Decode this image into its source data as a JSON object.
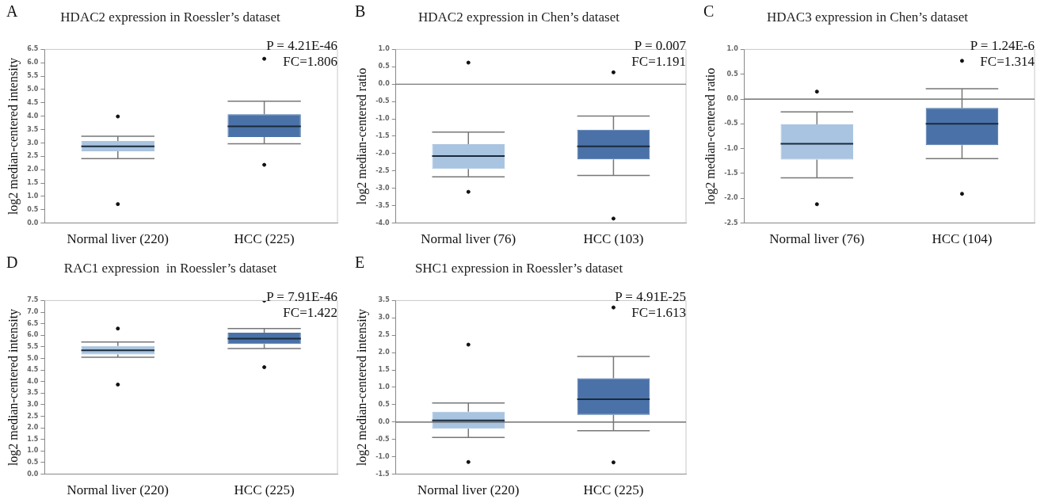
{
  "chart_data": [
    {
      "type": "box",
      "title": "HDAC2 expression in Roessler’s dataset",
      "ylabel": "log2 median-centered intensity",
      "categories": [
        "Normal liver (220)",
        "HCC (225)"
      ],
      "colors": [
        "#a9c4e0",
        "#4a72a8"
      ],
      "boxes": [
        {
          "low": 2.41,
          "q1": 2.69,
          "median": 2.87,
          "q3": 3.07,
          "high": 3.25,
          "outliers": [
            3.99,
            0.71
          ]
        },
        {
          "low": 2.97,
          "q1": 3.22,
          "median": 3.62,
          "q3": 4.07,
          "high": 4.56,
          "outliers": [
            6.15,
            2.18
          ]
        }
      ],
      "ylim": [
        0,
        6.5
      ],
      "yticks": [
        {
          "value": 0,
          "label": "0.0"
        },
        {
          "value": 0.5,
          "label": "0.5"
        },
        {
          "value": 1,
          "label": "1.0"
        },
        {
          "value": 1.5,
          "label": "1.5"
        },
        {
          "value": 2,
          "label": "2.0"
        },
        {
          "value": 2.5,
          "label": "2.5"
        },
        {
          "value": 3,
          "label": "3.0"
        },
        {
          "value": 3.5,
          "label": "3.5"
        },
        {
          "value": 4,
          "label": "4.0"
        },
        {
          "value": 4.5,
          "label": "4.5"
        },
        {
          "value": 5,
          "label": "5.0"
        },
        {
          "value": 5.5,
          "label": "5.5"
        },
        {
          "value": 6,
          "label": "6.0"
        },
        {
          "value": 6.5,
          "label": "6.5"
        }
      ],
      "annotations": [
        "A",
        "P = 4.21E-46",
        "FC=1.806"
      ],
      "legend": false,
      "grid": false
    },
    {
      "type": "box",
      "title": "HDAC2 expression in Chen’s dataset",
      "ylabel": "log2 median-centered ratio",
      "categories": [
        "Normal liver (76)",
        "HCC (103)"
      ],
      "colors": [
        "#a9c4e0",
        "#4a72a8"
      ],
      "boxes": [
        {
          "low": -2.67,
          "q1": -2.44,
          "median": -2.07,
          "q3": -1.73,
          "high": -1.38,
          "outliers": [
            0.62,
            -3.1
          ]
        },
        {
          "low": -2.63,
          "q1": -2.17,
          "median": -1.79,
          "q3": -1.31,
          "high": -0.92,
          "outliers": [
            0.34,
            -3.87
          ]
        }
      ],
      "ylim": [
        -4,
        1
      ],
      "yticks": [
        {
          "value": -4,
          "label": "-4.0"
        },
        {
          "value": -3.5,
          "label": "-3.5"
        },
        {
          "value": -3,
          "label": "-3.0"
        },
        {
          "value": -2.5,
          "label": "-2.5"
        },
        {
          "value": -2,
          "label": "-2.0"
        },
        {
          "value": -1.5,
          "label": "-1.5"
        },
        {
          "value": -1,
          "label": "-1.0"
        },
        {
          "value": -0.5,
          "label": "-0.5"
        },
        {
          "value": 0,
          "label": "0.0"
        },
        {
          "value": 0.5,
          "label": "0.5"
        },
        {
          "value": 1,
          "label": "1.0"
        }
      ],
      "ref_lines": [
        {
          "axis": "y",
          "value": 0,
          "color": "#555555"
        }
      ],
      "annotations": [
        "B",
        "P = 0.007",
        "FC=1.191"
      ],
      "legend": false,
      "grid": false
    },
    {
      "type": "box",
      "title": "HDAC3 expression in Chen’s dataset",
      "ylabel": "log2 median-centered ratio",
      "categories": [
        "Normal liver (76)",
        "HCC (104)"
      ],
      "colors": [
        "#a9c4e0",
        "#4a72a8"
      ],
      "boxes": [
        {
          "low": -1.59,
          "q1": -1.22,
          "median": -0.9,
          "q3": -0.51,
          "high": -0.26,
          "outliers": [
            0.15,
            -2.12
          ]
        },
        {
          "low": -1.2,
          "q1": -0.93,
          "median": -0.5,
          "q3": -0.18,
          "high": 0.21,
          "outliers": [
            0.77,
            -1.91
          ]
        }
      ],
      "ylim": [
        -2.5,
        1
      ],
      "yticks": [
        {
          "value": -2.5,
          "label": "-2.5"
        },
        {
          "value": -2,
          "label": "-2.0"
        },
        {
          "value": -1.5,
          "label": "-1.5"
        },
        {
          "value": -1,
          "label": "-1.0"
        },
        {
          "value": -0.5,
          "label": "-0.5"
        },
        {
          "value": 0,
          "label": "0.0"
        },
        {
          "value": 0.5,
          "label": "0.5"
        },
        {
          "value": 1,
          "label": "1.0"
        }
      ],
      "ref_lines": [
        {
          "axis": "y",
          "value": 0,
          "color": "#555555"
        }
      ],
      "annotations": [
        "C",
        "P = 1.24E-6",
        "FC=1.314"
      ],
      "legend": false,
      "grid": false
    },
    {
      "type": "box",
      "title": "RAC1 expression  in Roessler’s dataset",
      "ylabel": "log2 median-centered intensity",
      "categories": [
        "Normal liver (220)",
        "HCC (225)"
      ],
      "colors": [
        "#a9c4e0",
        "#4a72a8"
      ],
      "boxes": [
        {
          "low": 5.05,
          "q1": 5.17,
          "median": 5.35,
          "q3": 5.54,
          "high": 5.71,
          "outliers": [
            6.29,
            3.87
          ]
        },
        {
          "low": 5.43,
          "q1": 5.62,
          "median": 5.85,
          "q3": 6.11,
          "high": 6.29,
          "outliers": [
            7.5,
            4.62
          ]
        }
      ],
      "ylim": [
        0,
        7.5
      ],
      "yticks": [
        {
          "value": 0,
          "label": "0.0"
        },
        {
          "value": 0.5,
          "label": "0.5"
        },
        {
          "value": 1,
          "label": "1.0"
        },
        {
          "value": 1.5,
          "label": "1.5"
        },
        {
          "value": 2,
          "label": "2.0"
        },
        {
          "value": 2.5,
          "label": "2.5"
        },
        {
          "value": 3,
          "label": "3.0"
        },
        {
          "value": 3.5,
          "label": "3.5"
        },
        {
          "value": 4,
          "label": "4.0"
        },
        {
          "value": 4.5,
          "label": "4.5"
        },
        {
          "value": 5,
          "label": "5.0"
        },
        {
          "value": 5.5,
          "label": "5.5"
        },
        {
          "value": 6,
          "label": "6.0"
        },
        {
          "value": 6.5,
          "label": "6.5"
        },
        {
          "value": 7,
          "label": "7.0"
        },
        {
          "value": 7.5,
          "label": "7.5"
        }
      ],
      "annotations": [
        "D",
        "P = 7.91E-46",
        "FC=1.422"
      ],
      "legend": false,
      "grid": false
    },
    {
      "type": "box",
      "title": "SHC1 expression in Roessler’s dataset",
      "ylabel": "log2 median-centered intensity",
      "categories": [
        "Normal liver (220)",
        "HCC (225)"
      ],
      "colors": [
        "#a9c4e0",
        "#4a72a8"
      ],
      "boxes": [
        {
          "low": -0.44,
          "q1": -0.19,
          "median": 0.05,
          "q3": 0.3,
          "high": 0.55,
          "outliers": [
            2.23,
            -1.15
          ]
        },
        {
          "low": -0.25,
          "q1": 0.21,
          "median": 0.66,
          "q3": 1.26,
          "high": 1.89,
          "outliers": [
            3.3,
            -1.16
          ]
        }
      ],
      "ylim": [
        -1.5,
        3.5
      ],
      "yticks": [
        {
          "value": -1.5,
          "label": "-1.5"
        },
        {
          "value": -1,
          "label": "-1.0"
        },
        {
          "value": -0.5,
          "label": "-0.5"
        },
        {
          "value": 0,
          "label": "0.0"
        },
        {
          "value": 0.5,
          "label": "0.5"
        },
        {
          "value": 1,
          "label": "1.0"
        },
        {
          "value": 1.5,
          "label": "1.5"
        },
        {
          "value": 2,
          "label": "2.0"
        },
        {
          "value": 2.5,
          "label": "2.5"
        },
        {
          "value": 3,
          "label": "3.0"
        },
        {
          "value": 3.5,
          "label": "3.5"
        }
      ],
      "ref_lines": [
        {
          "axis": "y",
          "value": 0,
          "color": "#555555"
        }
      ],
      "annotations": [
        "E",
        "P = 4.91E-25",
        "FC=1.613"
      ],
      "legend": false,
      "grid": false
    }
  ]
}
